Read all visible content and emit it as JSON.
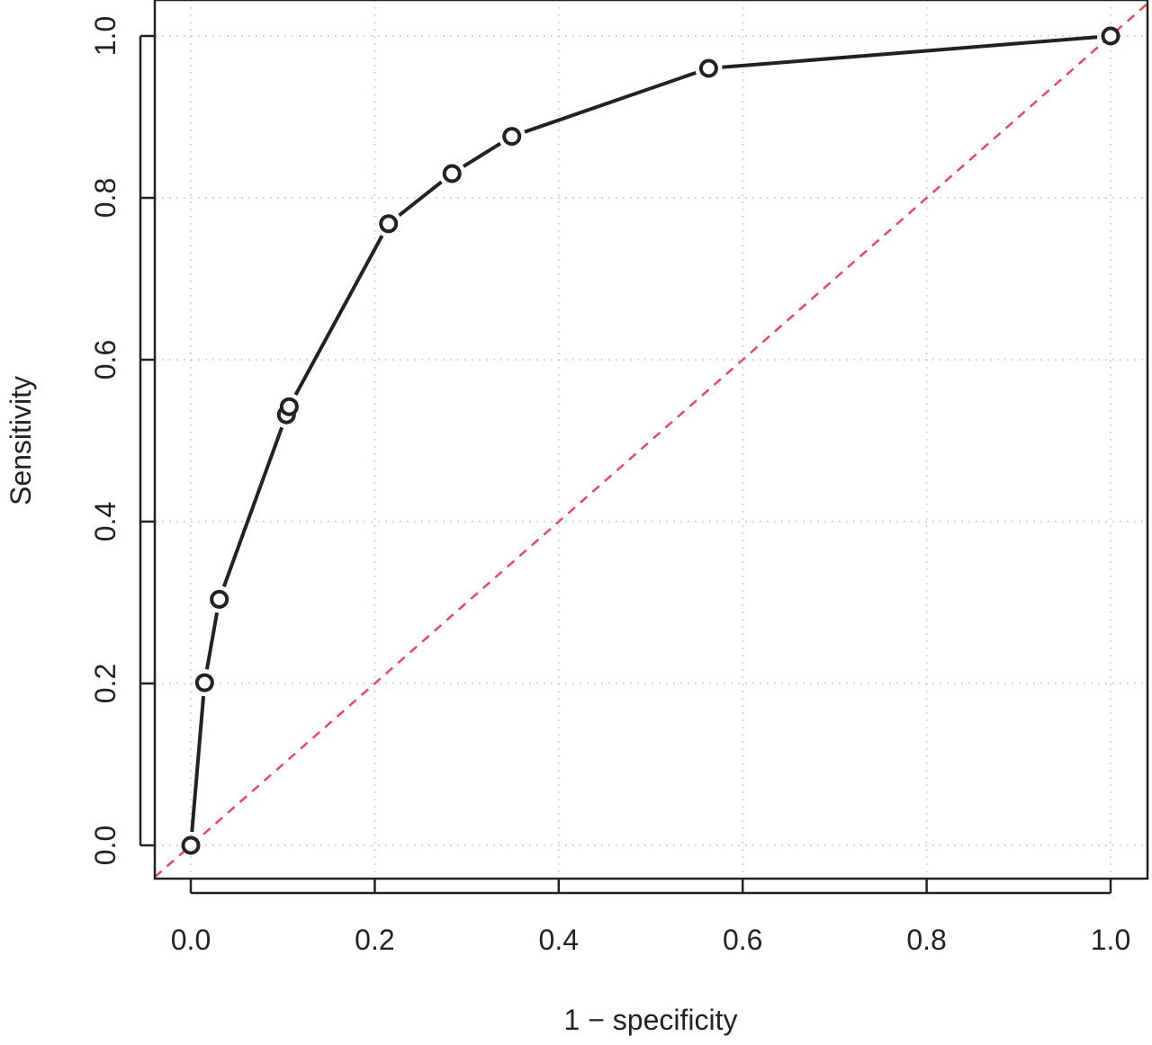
{
  "chart_data": {
    "type": "line",
    "xlabel": "1 − specificity",
    "ylabel": "Sensitivity",
    "xlim": [
      0,
      1
    ],
    "ylim": [
      0,
      1
    ],
    "x_ticks": [
      "0.0",
      "0.2",
      "0.4",
      "0.6",
      "0.8",
      "1.0"
    ],
    "y_ticks": [
      "0.0",
      "0.2",
      "0.4",
      "0.6",
      "0.8",
      "1.0"
    ],
    "grid": true,
    "series": [
      {
        "x": [
          0.0,
          0.015,
          0.031,
          0.104,
          0.107,
          0.215,
          0.284,
          0.349,
          0.563,
          1.0
        ],
        "y": [
          0.0,
          0.201,
          0.304,
          0.532,
          0.542,
          0.768,
          0.83,
          0.876,
          0.96,
          1.0
        ],
        "color": "#222222",
        "marker": "open-circle"
      }
    ],
    "reference_line": {
      "x": [
        0,
        1
      ],
      "y": [
        0,
        1
      ],
      "style": "dashed",
      "color": "#e8495f"
    }
  }
}
